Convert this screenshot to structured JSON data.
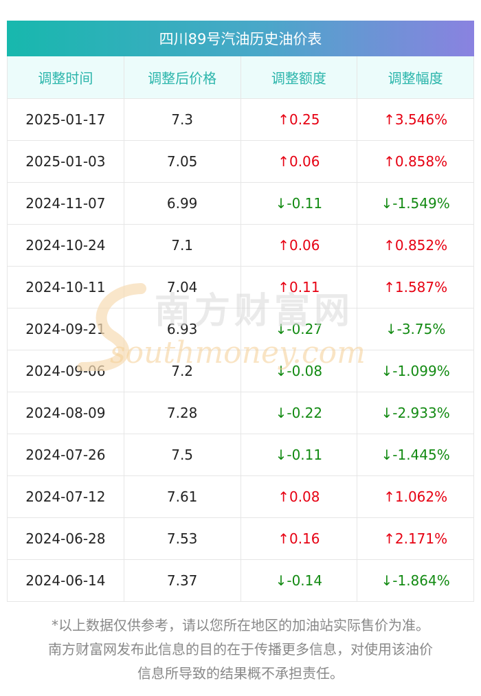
{
  "title": "四川89号汽油历史油价表",
  "headers": [
    "调整时间",
    "调整后价格",
    "调整额度",
    "调整幅度"
  ],
  "rows": [
    {
      "date": "2025-01-17",
      "price": "7.3",
      "change": "↑0.25",
      "percent": "↑3.546%",
      "direction": "up"
    },
    {
      "date": "2025-01-03",
      "price": "7.05",
      "change": "↑0.06",
      "percent": "↑0.858%",
      "direction": "up"
    },
    {
      "date": "2024-11-07",
      "price": "6.99",
      "change": "↓-0.11",
      "percent": "↓-1.549%",
      "direction": "down"
    },
    {
      "date": "2024-10-24",
      "price": "7.1",
      "change": "↑0.06",
      "percent": "↑0.852%",
      "direction": "up"
    },
    {
      "date": "2024-10-11",
      "price": "7.04",
      "change": "↑0.11",
      "percent": "↑1.587%",
      "direction": "up"
    },
    {
      "date": "2024-09-21",
      "price": "6.93",
      "change": "↓-0.27",
      "percent": "↓-3.75%",
      "direction": "down"
    },
    {
      "date": "2024-09-06",
      "price": "7.2",
      "change": "↓-0.08",
      "percent": "↓-1.099%",
      "direction": "down"
    },
    {
      "date": "2024-08-09",
      "price": "7.28",
      "change": "↓-0.22",
      "percent": "↓-2.933%",
      "direction": "down"
    },
    {
      "date": "2024-07-26",
      "price": "7.5",
      "change": "↓-0.11",
      "percent": "↓-1.445%",
      "direction": "down"
    },
    {
      "date": "2024-07-12",
      "price": "7.61",
      "change": "↑0.08",
      "percent": "↑1.062%",
      "direction": "up"
    },
    {
      "date": "2024-06-28",
      "price": "7.53",
      "change": "↑0.16",
      "percent": "↑2.171%",
      "direction": "up"
    },
    {
      "date": "2024-06-14",
      "price": "7.37",
      "change": "↓-0.14",
      "percent": "↓-1.864%",
      "direction": "down"
    }
  ],
  "watermark": {
    "name": "南方财富网",
    "domain": "southmoney.com"
  },
  "footnote": {
    "lines": [
      "*以上数据仅供参考，请以您所在地区的加油站实际售价为准。",
      "南方财富网发布此信息的目的在于传播更多信息，对使用该油价",
      "信息所导致的结果概不承担责任。"
    ]
  },
  "colors": {
    "up": "#e60012",
    "down": "#128a12",
    "header_text": "#2bb5ab",
    "header_bg": "#ecfcfb",
    "title_gradient_start": "#17b8ad",
    "title_gradient_end": "#8a82e0"
  }
}
